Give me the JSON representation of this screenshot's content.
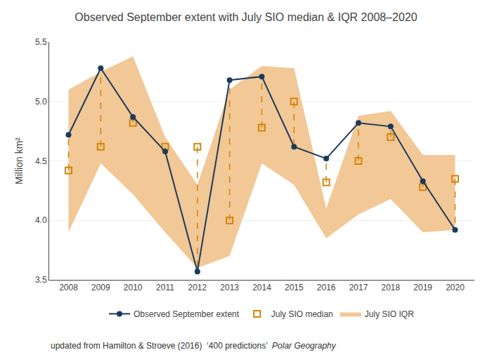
{
  "chart_data": {
    "type": "line",
    "title": "Observed September extent with July SIO median & IQR 2008–2020",
    "ylabel": "Million km²",
    "x": [
      2008,
      2009,
      2010,
      2011,
      2012,
      2013,
      2014,
      2015,
      2016,
      2017,
      2018,
      2019,
      2020
    ],
    "series": [
      {
        "name": "Observed September extent",
        "type": "line",
        "marker": "circle",
        "color": "#1b3a5c",
        "values": [
          4.72,
          5.28,
          4.87,
          4.58,
          3.57,
          5.18,
          5.21,
          4.62,
          4.52,
          4.82,
          4.79,
          4.33,
          3.92
        ]
      },
      {
        "name": "July SIO median",
        "type": "scatter",
        "marker": "square",
        "line_style": "dashed",
        "color": "#d4830a",
        "values": [
          4.42,
          4.62,
          4.82,
          4.62,
          4.62,
          4.0,
          4.78,
          5.0,
          4.32,
          4.5,
          4.7,
          4.28,
          4.35
        ]
      },
      {
        "name": "July SIO IQR",
        "type": "band",
        "color": "#f2c896",
        "lower": [
          3.9,
          4.48,
          4.22,
          3.9,
          3.6,
          3.7,
          4.48,
          4.3,
          3.85,
          4.05,
          4.18,
          3.9,
          3.92
        ],
        "upper": [
          5.1,
          5.25,
          5.38,
          4.7,
          4.3,
          5.1,
          5.3,
          5.28,
          4.1,
          4.88,
          4.92,
          4.55,
          4.55
        ]
      }
    ],
    "xlim": [
      2007.4,
      2020.6
    ],
    "xticks": [
      2008,
      2009,
      2010,
      2011,
      2012,
      2013,
      2014,
      2015,
      2016,
      2017,
      2018,
      2019,
      2020
    ],
    "ylim": [
      3.5,
      5.5
    ],
    "yticks": [
      3.5,
      {
        "value": 4,
        "label": "4.0"
      },
      4.5,
      {
        "value": 5,
        "label": "5.0"
      },
      5.5
    ],
    "grid": "y",
    "legend": "bottom",
    "footnote": {
      "text": "updated from Hamilton & Stroeve (2016)  ‘400 predictions’  ",
      "italic": "Polar Geography"
    }
  }
}
